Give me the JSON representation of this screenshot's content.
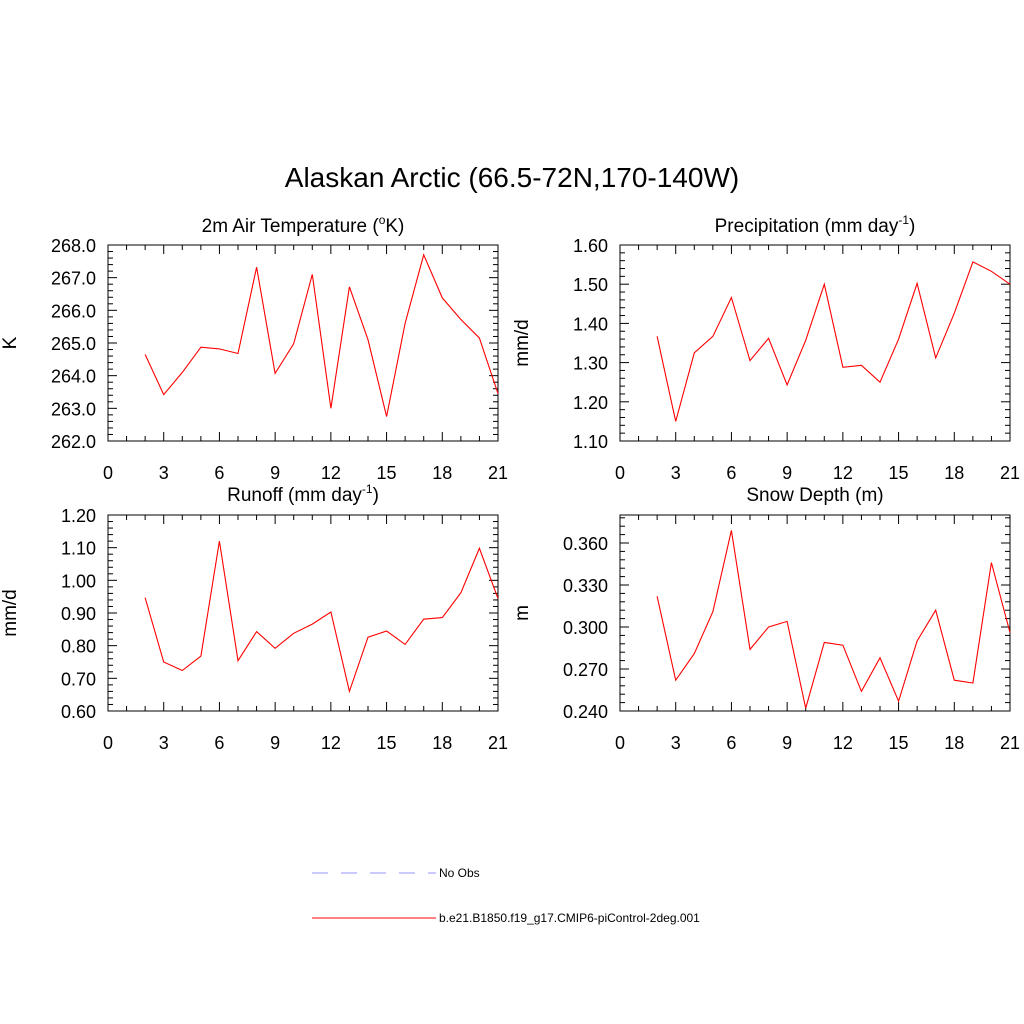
{
  "figure": {
    "title": "Alaskan Arctic (66.5-72N,170-140W)"
  },
  "chart_data": [
    {
      "type": "line",
      "title": "2m Air Temperature (",
      "title_sup": "o",
      "title_after": "K)",
      "ylabel": "K",
      "xlim": [
        0,
        21
      ],
      "ylim": [
        262.0,
        268.0
      ],
      "xticks": [
        0,
        3,
        6,
        9,
        12,
        15,
        18,
        21
      ],
      "yticks": [
        "262.0",
        "263.0",
        "264.0",
        "265.0",
        "266.0",
        "267.0",
        "268.0"
      ],
      "series": [
        {
          "name": "b.e21.B1850.f19_g17.CMIP6-piControl-2deg.001",
          "color": "#ff0000",
          "x": [
            2,
            3,
            4,
            5,
            6,
            7,
            8,
            9,
            10,
            11,
            12,
            13,
            14,
            15,
            16,
            17,
            18,
            19,
            20,
            21
          ],
          "values": [
            264.65,
            263.42,
            264.1,
            264.87,
            264.82,
            264.68,
            267.32,
            264.07,
            264.98,
            267.1,
            263.0,
            266.72,
            265.1,
            262.75,
            265.6,
            267.7,
            266.38,
            265.72,
            265.15,
            263.45
          ]
        }
      ]
    },
    {
      "type": "line",
      "title": "Precipitation (mm day",
      "title_sup": "-1",
      "title_after": ")",
      "ylabel": "mm/d",
      "xlim": [
        0,
        21
      ],
      "ylim": [
        1.1,
        1.6
      ],
      "xticks": [
        0,
        3,
        6,
        9,
        12,
        15,
        18,
        21
      ],
      "yticks": [
        "1.10",
        "1.20",
        "1.30",
        "1.40",
        "1.50",
        "1.60"
      ],
      "series": [
        {
          "name": "b.e21.B1850.f19_g17.CMIP6-piControl-2deg.001",
          "color": "#ff0000",
          "x": [
            2,
            3,
            4,
            5,
            6,
            7,
            8,
            9,
            10,
            11,
            12,
            13,
            14,
            15,
            16,
            17,
            18,
            19,
            20,
            21
          ],
          "values": [
            1.367,
            1.15,
            1.325,
            1.367,
            1.466,
            1.305,
            1.362,
            1.243,
            1.357,
            1.5,
            1.288,
            1.293,
            1.25,
            1.36,
            1.502,
            1.312,
            1.426,
            1.557,
            1.533,
            1.5
          ]
        }
      ]
    },
    {
      "type": "line",
      "title": "Runoff (mm day",
      "title_sup": "-1",
      "title_after": ")",
      "ylabel": "mm/d",
      "xlim": [
        0,
        21
      ],
      "ylim": [
        0.6,
        1.2
      ],
      "xticks": [
        0,
        3,
        6,
        9,
        12,
        15,
        18,
        21
      ],
      "yticks": [
        "0.60",
        "0.70",
        "0.80",
        "0.90",
        "1.00",
        "1.10",
        "1.20"
      ],
      "series": [
        {
          "name": "b.e21.B1850.f19_g17.CMIP6-piControl-2deg.001",
          "color": "#ff0000",
          "x": [
            2,
            3,
            4,
            5,
            6,
            7,
            8,
            9,
            10,
            11,
            12,
            13,
            14,
            15,
            16,
            17,
            18,
            19,
            20,
            21
          ],
          "values": [
            0.947,
            0.75,
            0.724,
            0.768,
            1.12,
            0.754,
            0.843,
            0.792,
            0.838,
            0.866,
            0.903,
            0.66,
            0.826,
            0.845,
            0.804,
            0.881,
            0.886,
            0.962,
            1.098,
            0.944
          ]
        }
      ]
    },
    {
      "type": "line",
      "title": "Snow Depth (m)",
      "title_sup": "",
      "title_after": "",
      "ylabel": "m",
      "xlim": [
        0,
        21
      ],
      "ylim": [
        0.24,
        0.38
      ],
      "xticks": [
        0,
        3,
        6,
        9,
        12,
        15,
        18,
        21
      ],
      "yticks": [
        "0.240",
        "0.270",
        "0.300",
        "0.330",
        "0.360"
      ],
      "series": [
        {
          "name": "b.e21.B1850.f19_g17.CMIP6-piControl-2deg.001",
          "color": "#ff0000",
          "x": [
            2,
            3,
            4,
            5,
            6,
            7,
            8,
            9,
            10,
            11,
            12,
            13,
            14,
            15,
            16,
            17,
            18,
            19,
            20,
            21
          ],
          "values": [
            0.322,
            0.262,
            0.281,
            0.311,
            0.369,
            0.284,
            0.3,
            0.304,
            0.242,
            0.289,
            0.287,
            0.254,
            0.278,
            0.247,
            0.29,
            0.312,
            0.262,
            0.26,
            0.346,
            0.296
          ]
        }
      ]
    }
  ],
  "legend": {
    "placement": "bottom-center",
    "entries": [
      {
        "label": "No Obs",
        "color": "#aaaaff",
        "style": "dashed"
      },
      {
        "label": "b.e21.B1850.f19_g17.CMIP6-piControl-2deg.001",
        "color": "#ff0000",
        "style": "solid"
      }
    ]
  }
}
